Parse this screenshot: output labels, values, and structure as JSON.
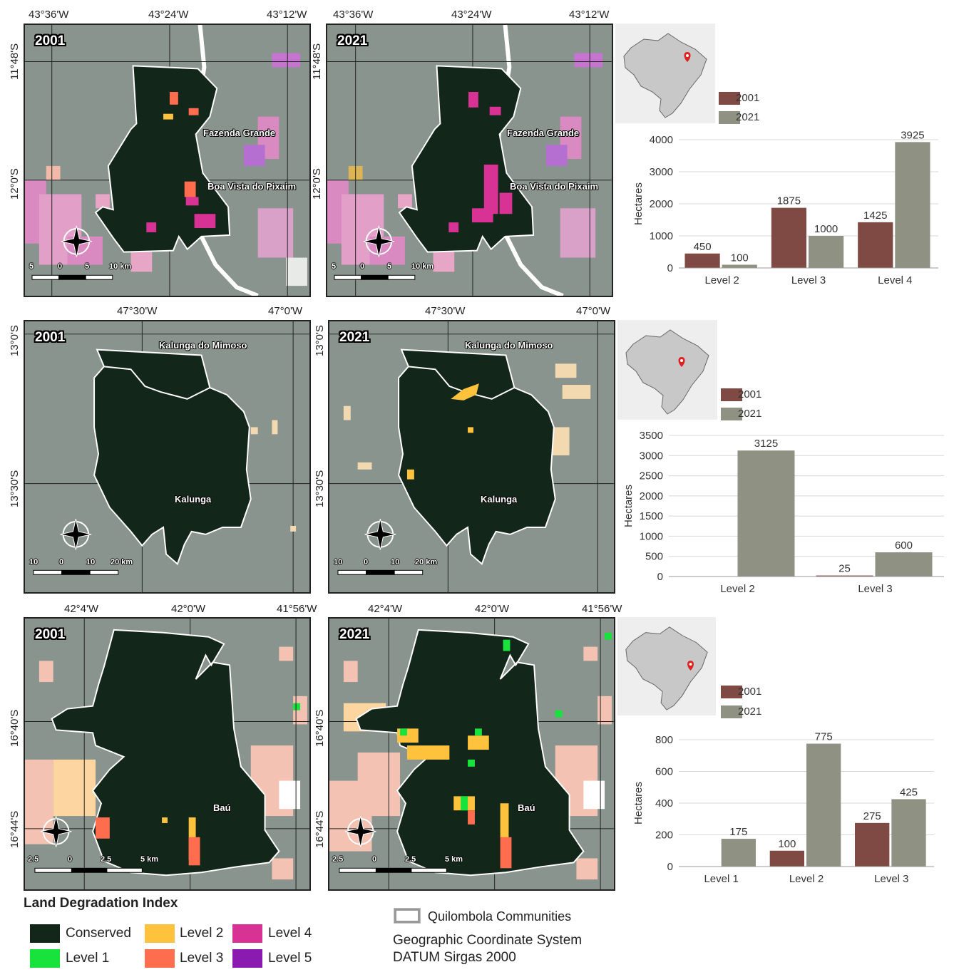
{
  "rows": [
    {
      "lon_labels": [
        "43°36'W",
        "43°24'W",
        "43°12'W"
      ],
      "lat_labels": [
        "11°48'S",
        "12°0'S"
      ],
      "places": [
        "Fazenda Grande",
        "Boa Vista do Pixaim"
      ],
      "scale": [
        "5",
        "0",
        "5",
        "10 km"
      ],
      "maps": [
        {
          "year": "2001"
        },
        {
          "year": "2021"
        }
      ],
      "chart_data": {
        "type": "bar",
        "categories": [
          "Level 2",
          "Level 3",
          "Level 4"
        ],
        "series": [
          {
            "name": "2001",
            "values": [
              450,
              1875,
              1425
            ]
          },
          {
            "name": "2021",
            "values": [
              100,
              1000,
              3925
            ]
          }
        ],
        "ylabel": "Hectares",
        "ylim": [
          0,
          4000
        ],
        "yticks": [
          0,
          1000,
          2000,
          3000,
          4000
        ],
        "value_labels": [
          [
            "450",
            "1875",
            "1425"
          ],
          [
            "100",
            "1000",
            "3925"
          ]
        ]
      }
    },
    {
      "lon_labels": [
        "47°30'W",
        "47°0'W"
      ],
      "lat_labels": [
        "13°0'S",
        "13°30'S"
      ],
      "places": [
        "Kalunga do Mimoso",
        "Kalunga"
      ],
      "scale": [
        "10",
        "0",
        "10",
        "20 km"
      ],
      "maps": [
        {
          "year": "2001"
        },
        {
          "year": "2021"
        }
      ],
      "chart_data": {
        "type": "bar",
        "categories": [
          "Level 2",
          "Level 3"
        ],
        "series": [
          {
            "name": "2001",
            "values": [
              0,
              25
            ]
          },
          {
            "name": "2021",
            "values": [
              3125,
              600
            ]
          }
        ],
        "ylabel": "Hectares",
        "ylim": [
          0,
          3500
        ],
        "yticks": [
          0,
          500,
          1000,
          1500,
          2000,
          2500,
          3000,
          3500
        ],
        "value_labels": [
          [
            "",
            "25"
          ],
          [
            "3125",
            "600"
          ]
        ]
      }
    },
    {
      "lon_labels": [
        "42°4'W",
        "42°0'W",
        "41°56'W"
      ],
      "lat_labels": [
        "16°40'S",
        "16°44'S"
      ],
      "places": [
        "Baú"
      ],
      "scale": [
        "2.5",
        "0",
        "2.5",
        "5 km"
      ],
      "maps": [
        {
          "year": "2001"
        },
        {
          "year": "2021"
        }
      ],
      "chart_data": {
        "type": "bar",
        "categories": [
          "Level 1",
          "Level 2",
          "Level 3"
        ],
        "series": [
          {
            "name": "2001",
            "values": [
              0,
              100,
              275
            ]
          },
          {
            "name": "2021",
            "values": [
              175,
              775,
              425
            ]
          }
        ],
        "ylabel": "Hectares",
        "ylim": [
          0,
          800
        ],
        "yticks": [
          0,
          200,
          400,
          600,
          800
        ],
        "value_labels": [
          [
            "",
            "100",
            "275"
          ],
          [
            "175",
            "775",
            "425"
          ]
        ]
      }
    }
  ],
  "colors": {
    "bar_2001": "#7f4a43",
    "bar_2021": "#8f9183",
    "conserved": "#13261a",
    "level1": "#18e23c",
    "level2": "#fec23d",
    "level3": "#fd6d4e",
    "level4": "#d83295",
    "level5": "#8b1bb0",
    "background": "#8a948e"
  },
  "legend": {
    "title": "Land Degradation Index",
    "items": [
      "Conserved",
      "Level 1",
      "Level 2",
      "Level 3",
      "Level 4",
      "Level 5"
    ]
  },
  "footer": {
    "communities": "Quilombola Communities",
    "crs_line1": "Geographic Coordinate System",
    "crs_line2": "DATUM Sirgas 2000"
  }
}
